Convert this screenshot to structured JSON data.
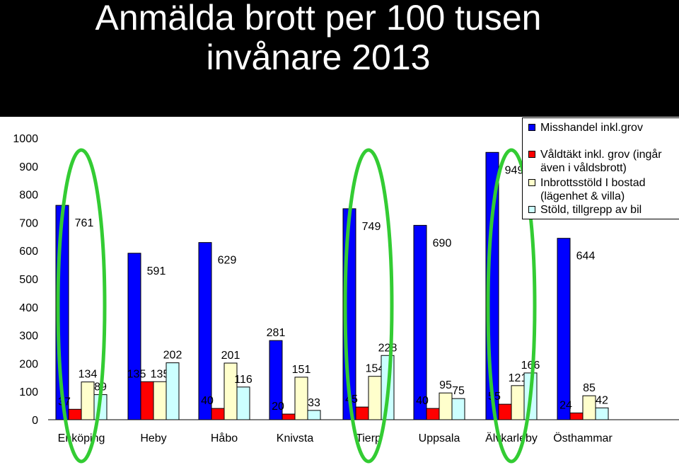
{
  "chart_data": {
    "type": "bar",
    "title": "Anmälda brott per 100 tusen invånare 2013",
    "title_lines": [
      "Anmälda brott per 100 tusen",
      "invånare 2013"
    ],
    "xlabel": "",
    "ylabel": "",
    "ylim": [
      0,
      1000
    ],
    "yticks": [
      "0",
      "100",
      "200",
      "300",
      "400",
      "500",
      "600",
      "700",
      "800",
      "900",
      "1000"
    ],
    "grid": false,
    "legend_position": "top-right",
    "categories": [
      "Enköping",
      "Heby",
      "Håbo",
      "Knivsta",
      "Tierp",
      "Uppsala",
      "Älvkarleby",
      "Östhammar"
    ],
    "series": [
      {
        "name": "Misshandel inkl.grov",
        "color": "#0000ff",
        "values": [
          761,
          591,
          629,
          281,
          749,
          690,
          949,
          644
        ]
      },
      {
        "name": "Våldtäkt inkl. grov (ingår även i våldsbrott)",
        "color": "#ff0000",
        "values": [
          37,
          135,
          40,
          20,
          45,
          40,
          55,
          24
        ]
      },
      {
        "name": "Inbrottsstöld I bostad (lägenhet & villa)",
        "color": "#ffffcc",
        "values": [
          134,
          135,
          201,
          151,
          154,
          95,
          121,
          85
        ]
      },
      {
        "name": "Stöld, tillgrepp av bil",
        "color": "#ccffff",
        "values": [
          89,
          202,
          116,
          33,
          228,
          75,
          166,
          42
        ]
      }
    ],
    "annotation_color": "#33cc33"
  }
}
